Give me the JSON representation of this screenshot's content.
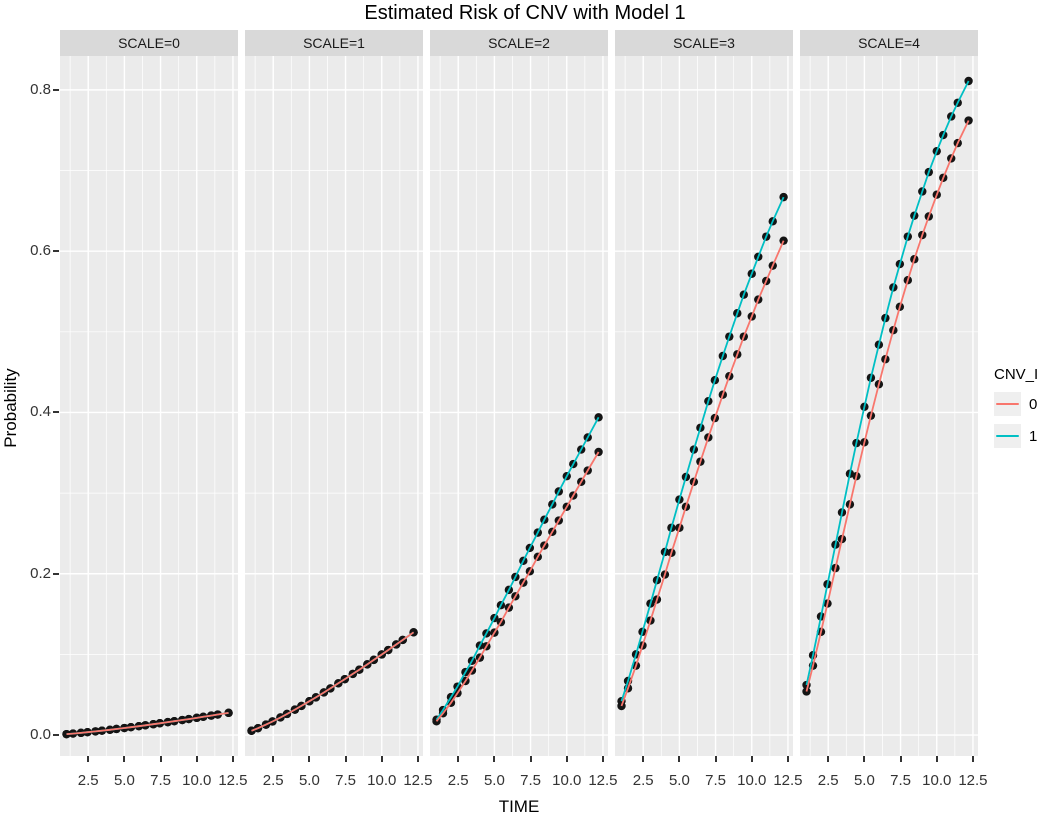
{
  "title": "Estimated Risk of CNV with Model 1",
  "x_axis": {
    "label": "TIME",
    "tick_labels": [
      "2.5",
      "5.0",
      "7.5",
      "10.0",
      "12.5"
    ],
    "tick_values": [
      2.5,
      5.0,
      7.5,
      10.0,
      12.5
    ]
  },
  "y_axis": {
    "label": "Probability",
    "tick_labels": [
      "0.0",
      "0.2",
      "0.4",
      "0.6",
      "0.8"
    ],
    "tick_values": [
      0.0,
      0.2,
      0.4,
      0.6,
      0.8
    ]
  },
  "legend": {
    "title": "CNV_I",
    "entries": [
      {
        "label": "0",
        "color": "#F8766D"
      },
      {
        "label": "1",
        "color": "#00BFC4"
      }
    ]
  },
  "style": {
    "panel_bg": "#EBEBEB",
    "strip_bg": "#D9D9D9",
    "grid_major_color": "#FFFFFF",
    "grid_minor_color": "#FFFFFF",
    "point_color": "#141414",
    "tick_color": "#333333",
    "series0_color": "#F8766D",
    "series1_color": "#00BFC4"
  },
  "chart_data": {
    "type": "line",
    "title": "Estimated Risk of CNV with Model 1",
    "xlabel": "TIME",
    "ylabel": "Probability",
    "facet_variable": "SCALE",
    "series_variable": "CNV_I",
    "legend_position": "right",
    "grid": "on",
    "x_range": [
      0.55,
      12.85
    ],
    "y_range": [
      -0.026,
      0.842
    ],
    "x_major_gridlines": [
      2.5,
      5.0,
      7.5,
      10.0,
      12.5
    ],
    "x_minor_gridlines": [
      1.25,
      3.75,
      6.25,
      8.75,
      11.25
    ],
    "y_major_gridlines": [
      0.0,
      0.2,
      0.4,
      0.6,
      0.8
    ],
    "y_minor_gridlines": [
      0.1,
      0.3,
      0.5,
      0.7
    ],
    "x": [
      1,
      1.45,
      2,
      2.45,
      3,
      3.45,
      4,
      4.45,
      5,
      5.45,
      6,
      6.45,
      7,
      7.45,
      8,
      8.45,
      9,
      9.45,
      10,
      10.45,
      11,
      11.45,
      12.2
    ],
    "facets": [
      {
        "label": "SCALE=0",
        "series": [
          {
            "name": "0",
            "color": "#F8766D",
            "y": [
              0.0011,
              0.0018,
              0.0027,
              0.0035,
              0.0045,
              0.0054,
              0.0065,
              0.0075,
              0.0087,
              0.0097,
              0.011,
              0.0121,
              0.0134,
              0.0146,
              0.016,
              0.0172,
              0.0186,
              0.0198,
              0.0213,
              0.0226,
              0.0241,
              0.0254,
              0.0275
            ]
          },
          {
            "name": "1",
            "color": "#00BFC4",
            "y": [
              0.0011,
              0.0018,
              0.0027,
              0.0035,
              0.0045,
              0.0054,
              0.0065,
              0.0075,
              0.0087,
              0.0097,
              0.011,
              0.0121,
              0.0134,
              0.0146,
              0.016,
              0.0172,
              0.0186,
              0.0198,
              0.0213,
              0.0226,
              0.0241,
              0.0254,
              0.0275
            ]
          }
        ]
      },
      {
        "label": "SCALE=1",
        "series": [
          {
            "name": "0",
            "color": "#F8766D",
            "y": [
              0.0053,
              0.0085,
              0.0129,
              0.0168,
              0.0218,
              0.0261,
              0.0315,
              0.0361,
              0.0419,
              0.0467,
              0.0528,
              0.0578,
              0.0641,
              0.0693,
              0.0758,
              0.081,
              0.0876,
              0.0932,
              0.0999,
              0.1054,
              0.1123,
              0.1179,
              0.1274
            ]
          },
          {
            "name": "1",
            "color": "#00BFC4",
            "y": [
              0.0053,
              0.0085,
              0.0129,
              0.0168,
              0.0218,
              0.0261,
              0.0315,
              0.0361,
              0.0419,
              0.0467,
              0.0528,
              0.0578,
              0.0641,
              0.0693,
              0.0758,
              0.081,
              0.0876,
              0.0932,
              0.0999,
              0.1054,
              0.1123,
              0.1179,
              0.1274
            ]
          }
        ]
      },
      {
        "label": "SCALE=2",
        "series": [
          {
            "name": "0",
            "color": "#F8766D",
            "y": [
              0.017,
              0.027,
              0.04,
              0.052,
              0.067,
              0.08,
              0.096,
              0.11,
              0.127,
              0.14,
              0.158,
              0.172,
              0.189,
              0.203,
              0.221,
              0.235,
              0.252,
              0.266,
              0.283,
              0.297,
              0.314,
              0.328,
              0.351
            ]
          },
          {
            "name": "1",
            "color": "#00BFC4",
            "y": [
              0.019,
              0.031,
              0.047,
              0.06,
              0.078,
              0.092,
              0.111,
              0.126,
              0.145,
              0.161,
              0.18,
              0.196,
              0.216,
              0.232,
              0.251,
              0.267,
              0.286,
              0.302,
              0.321,
              0.336,
              0.354,
              0.369,
              0.394
            ]
          }
        ]
      },
      {
        "label": "SCALE=3",
        "series": [
          {
            "name": "0",
            "color": "#F8766D",
            "y": [
              0.036,
              0.058,
              0.086,
              0.111,
              0.142,
              0.168,
              0.199,
              0.226,
              0.257,
              0.283,
              0.314,
              0.339,
              0.369,
              0.393,
              0.422,
              0.445,
              0.472,
              0.494,
              0.519,
              0.54,
              0.563,
              0.582,
              0.613
            ]
          },
          {
            "name": "1",
            "color": "#00BFC4",
            "y": [
              0.042,
              0.067,
              0.1,
              0.128,
              0.163,
              0.192,
              0.227,
              0.257,
              0.292,
              0.32,
              0.354,
              0.381,
              0.414,
              0.44,
              0.47,
              0.494,
              0.523,
              0.546,
              0.572,
              0.593,
              0.618,
              0.637,
              0.667
            ]
          }
        ]
      },
      {
        "label": "SCALE=4",
        "series": [
          {
            "name": "0",
            "color": "#F8766D",
            "y": [
              0.054,
              0.086,
              0.128,
              0.163,
              0.207,
              0.243,
              0.286,
              0.321,
              0.363,
              0.396,
              0.435,
              0.466,
              0.502,
              0.531,
              0.564,
              0.59,
              0.62,
              0.643,
              0.67,
              0.691,
              0.715,
              0.734,
              0.762
            ]
          },
          {
            "name": "1",
            "color": "#00BFC4",
            "y": [
              0.062,
              0.099,
              0.147,
              0.187,
              0.236,
              0.276,
              0.324,
              0.362,
              0.407,
              0.443,
              0.484,
              0.517,
              0.555,
              0.584,
              0.618,
              0.644,
              0.674,
              0.698,
              0.724,
              0.744,
              0.767,
              0.784,
              0.811
            ]
          }
        ]
      }
    ]
  }
}
